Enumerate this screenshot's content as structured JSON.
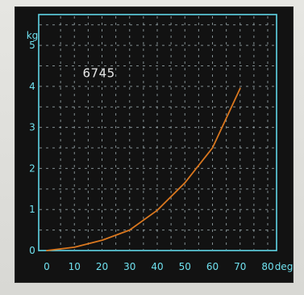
{
  "chart_data": {
    "type": "line",
    "title": "",
    "xlabel": "deg",
    "ylabel": "kg",
    "xlim": [
      0,
      85
    ],
    "ylim": [
      0,
      5.6
    ],
    "x_ticks": [
      0,
      10,
      20,
      30,
      40,
      50,
      60,
      70,
      80
    ],
    "y_ticks": [
      0,
      1,
      2,
      3,
      4,
      5
    ],
    "x_tick_labels": [
      "0",
      "10",
      "20",
      "30",
      "40",
      "50",
      "60",
      "70",
      "80"
    ],
    "y_tick_labels": [
      "0",
      "1",
      "2",
      "3",
      "4",
      "5"
    ],
    "grid": true,
    "annotation": "6745",
    "series": [
      {
        "x": [
          0,
          10,
          20,
          30,
          40,
          50,
          60,
          70
        ],
        "y": [
          0,
          0.08,
          0.25,
          0.5,
          0.98,
          1.65,
          2.5,
          3.95
        ]
      }
    ]
  },
  "colors": {
    "axis": "#5fd6e6",
    "grid": "#a8b8bc",
    "curve": "#d9771f",
    "text": "#6fe0ee",
    "annotation": "#e6e6e6"
  }
}
